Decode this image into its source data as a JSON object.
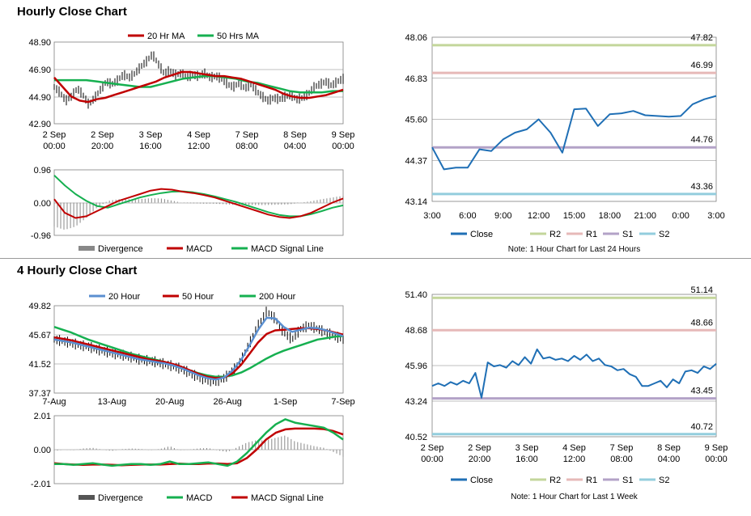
{
  "sections": {
    "hourly_title": "Hourly Close Chart",
    "four_hourly_title": "4 Hourly Close Chart"
  },
  "colors": {
    "ma_red": "#c00000",
    "ma_green": "#16b050",
    "ma_blue": "#5b8fd0",
    "close_blue": "#1f6fb5",
    "r2": "#c3d69b",
    "r1": "#e6b9b8",
    "s1": "#b3a2c7",
    "s2": "#93cddd",
    "divergence": "#888888"
  },
  "chart_data": [
    {
      "id": "hourly_price",
      "type": "line",
      "legend": [
        "20 Hr MA",
        "50 Hrs MA"
      ],
      "y_ticks": [
        "48.90",
        "46.90",
        "44.90",
        "42.90"
      ],
      "ylim": [
        42.9,
        48.9
      ],
      "x_ticks": [
        [
          "2 Sep",
          "00:00"
        ],
        [
          "2 Sep",
          "20:00"
        ],
        [
          "3 Sep",
          "16:00"
        ],
        [
          "4 Sep",
          "12:00"
        ],
        [
          "7 Sep",
          "08:00"
        ],
        [
          "8 Sep",
          "04:00"
        ],
        [
          "9 Sep",
          "00:00"
        ]
      ],
      "price": [
        45.6,
        45.2,
        44.6,
        44.9,
        45.5,
        45.0,
        44.3,
        44.8,
        45.4,
        46.0,
        45.8,
        46.1,
        46.5,
        46.3,
        46.6,
        47.1,
        47.5,
        48.0,
        47.3,
        46.6,
        46.8,
        46.5,
        46.6,
        46.3,
        46.5,
        46.4,
        46.6,
        46.3,
        46.4,
        46.2,
        45.8,
        45.6,
        45.9,
        45.5,
        45.8,
        45.3,
        44.9,
        44.6,
        44.8,
        44.7,
        44.9,
        45.0,
        44.7,
        44.8,
        45.1,
        45.6,
        45.8,
        46.0,
        45.7,
        46.0,
        46.2
      ],
      "ma20": [
        46.3,
        45.6,
        44.9,
        44.6,
        44.5,
        44.7,
        44.8,
        45.0,
        45.2,
        45.4,
        45.6,
        45.8,
        46.0,
        46.3,
        46.5,
        46.7,
        46.7,
        46.6,
        46.5,
        46.4,
        46.4,
        46.3,
        46.2,
        46.0,
        45.8,
        45.6,
        45.4,
        45.1,
        44.9,
        44.8,
        44.8,
        44.9,
        45.0,
        45.2,
        45.4
      ],
      "ma50": [
        46.1,
        46.1,
        46.1,
        46.1,
        46.0,
        45.9,
        45.8,
        45.7,
        45.6,
        45.6,
        45.8,
        46.0,
        46.2,
        46.3,
        46.4,
        46.4,
        46.3,
        46.2,
        46.0,
        45.9,
        45.7,
        45.5,
        45.3,
        45.2,
        45.2,
        45.2,
        45.3,
        45.3
      ]
    },
    {
      "id": "hourly_macd",
      "type": "line",
      "legend": [
        "Divergence",
        "MACD",
        "MACD Signal Line"
      ],
      "y_ticks": [
        "0.96",
        "0.00",
        "-0.96"
      ],
      "ylim": [
        -0.96,
        0.96
      ],
      "macd": [
        0.1,
        -0.3,
        -0.45,
        -0.4,
        -0.25,
        -0.1,
        0.05,
        0.15,
        0.25,
        0.35,
        0.4,
        0.38,
        0.32,
        0.28,
        0.22,
        0.15,
        0.05,
        -0.05,
        -0.15,
        -0.25,
        -0.35,
        -0.42,
        -0.45,
        -0.4,
        -0.3,
        -0.15,
        0.0,
        0.12
      ],
      "signal": [
        0.8,
        0.5,
        0.25,
        0.05,
        -0.1,
        -0.15,
        -0.05,
        0.05,
        0.15,
        0.22,
        0.28,
        0.32,
        0.33,
        0.3,
        0.25,
        0.18,
        0.1,
        0.02,
        -0.08,
        -0.18,
        -0.28,
        -0.36,
        -0.4,
        -0.4,
        -0.34,
        -0.25,
        -0.15,
        -0.08
      ]
    },
    {
      "id": "hourly_close_24h",
      "type": "line",
      "legend": [
        "Close",
        "R2",
        "R1",
        "S1",
        "S2"
      ],
      "y_ticks": [
        "48.06",
        "46.83",
        "45.60",
        "44.37",
        "43.14"
      ],
      "ylim": [
        43.14,
        48.06
      ],
      "x_ticks": [
        "3:00",
        "6:00",
        "9:00",
        "12:00",
        "15:00",
        "18:00",
        "21:00",
        "0:00",
        "3:00"
      ],
      "values": [
        44.76,
        44.1,
        44.15,
        44.15,
        44.7,
        44.65,
        45.0,
        45.2,
        45.3,
        45.6,
        45.2,
        44.6,
        45.9,
        45.92,
        45.4,
        45.75,
        45.78,
        45.85,
        45.72,
        45.7,
        45.68,
        45.7,
        46.05,
        46.2,
        46.3
      ],
      "levels": {
        "R2": 47.82,
        "R1": 46.99,
        "S1": 44.76,
        "S2": 43.36
      },
      "level_labels": [
        "47.82",
        "46.99",
        "44.76",
        "43.36"
      ],
      "note": "Note: 1 Hour Chart for Last 24 Hours"
    },
    {
      "id": "four_hourly_price",
      "type": "line",
      "legend": [
        "20 Hour",
        "50 Hour",
        "200 Hour"
      ],
      "y_ticks": [
        "49.82",
        "45.67",
        "41.52",
        "37.37"
      ],
      "ylim": [
        37.37,
        49.82
      ],
      "x_ticks": [
        "7-Aug",
        "13-Aug",
        "20-Aug",
        "26-Aug",
        "1-Sep",
        "7-Sep"
      ],
      "price": [
        45.0,
        44.8,
        44.5,
        44.2,
        44.0,
        43.6,
        43.3,
        43.0,
        42.8,
        42.5,
        42.2,
        42.0,
        41.8,
        41.5,
        41.2,
        40.8,
        40.2,
        39.6,
        39.2,
        39.0,
        39.5,
        40.5,
        42.0,
        44.5,
        47.0,
        49.0,
        48.0,
        46.0,
        45.0,
        46.5,
        47.0,
        46.5,
        46.0,
        45.5,
        45.0
      ],
      "ma20": [
        45.0,
        44.8,
        44.6,
        44.3,
        44.0,
        43.7,
        43.4,
        43.1,
        42.8,
        42.5,
        42.2,
        42.0,
        41.8,
        41.6,
        41.3,
        40.9,
        40.4,
        39.9,
        39.5,
        39.3,
        39.6,
        40.6,
        42.1,
        44.2,
        46.4,
        48.1,
        48.0,
        46.8,
        46.1,
        46.4,
        46.7,
        46.6,
        46.3,
        45.9,
        45.5
      ],
      "ma50": [
        45.3,
        45.1,
        44.9,
        44.6,
        44.3,
        44.0,
        43.7,
        43.4,
        43.1,
        42.8,
        42.5,
        42.2,
        42.0,
        41.8,
        41.5,
        41.1,
        40.6,
        40.1,
        39.7,
        39.5,
        39.6,
        40.2,
        41.4,
        43.0,
        44.6,
        45.8,
        46.3,
        46.4,
        46.5,
        46.6,
        46.6,
        46.5,
        46.3,
        46.0,
        45.7
      ],
      "ma200": [
        46.8,
        46.4,
        46.0,
        45.5,
        45.0,
        44.6,
        44.2,
        43.8,
        43.4,
        43.0,
        42.7,
        42.4,
        42.1,
        41.8,
        41.4,
        41.0,
        40.6,
        40.2,
        39.9,
        39.7,
        39.7,
        39.9,
        40.3,
        40.9,
        41.6,
        42.3,
        42.9,
        43.4,
        43.8,
        44.2,
        44.6,
        45.0,
        45.2,
        45.4,
        45.5
      ]
    },
    {
      "id": "four_hourly_macd",
      "type": "line",
      "legend": [
        "Divergence",
        "MACD",
        "MACD Signal Line"
      ],
      "y_ticks": [
        "2.01",
        "0.00",
        "-2.01"
      ],
      "ylim": [
        -2.01,
        2.01
      ],
      "macd": [
        -0.85,
        -0.85,
        -0.9,
        -0.85,
        -0.8,
        -0.88,
        -0.95,
        -0.9,
        -0.85,
        -0.85,
        -0.9,
        -0.85,
        -0.7,
        -0.85,
        -0.85,
        -0.8,
        -0.75,
        -0.85,
        -0.95,
        -0.7,
        -0.2,
        0.4,
        1.0,
        1.5,
        1.8,
        1.6,
        1.5,
        1.4,
        1.3,
        1.0,
        0.6
      ],
      "signal": [
        -0.8,
        -0.85,
        -0.88,
        -0.9,
        -0.88,
        -0.88,
        -0.9,
        -0.92,
        -0.9,
        -0.88,
        -0.88,
        -0.88,
        -0.85,
        -0.83,
        -0.85,
        -0.85,
        -0.82,
        -0.82,
        -0.85,
        -0.8,
        -0.5,
        0.0,
        0.6,
        1.0,
        1.2,
        1.25,
        1.25,
        1.25,
        1.22,
        1.1,
        0.9
      ]
    },
    {
      "id": "four_hourly_close_week",
      "type": "line",
      "legend": [
        "Close",
        "R2",
        "R1",
        "S1",
        "S2"
      ],
      "y_ticks": [
        "51.40",
        "48.68",
        "45.96",
        "43.24",
        "40.52"
      ],
      "ylim": [
        40.52,
        51.4
      ],
      "x_ticks": [
        [
          "2 Sep",
          "00:00"
        ],
        [
          "2 Sep",
          "20:00"
        ],
        [
          "3 Sep",
          "16:00"
        ],
        [
          "4 Sep",
          "12:00"
        ],
        [
          "7 Sep",
          "08:00"
        ],
        [
          "8 Sep",
          "04:00"
        ],
        [
          "9 Sep",
          "00:00"
        ]
      ],
      "values": [
        44.4,
        44.6,
        44.4,
        44.7,
        44.5,
        44.8,
        44.6,
        45.4,
        43.5,
        46.2,
        45.9,
        46.0,
        45.8,
        46.3,
        46.0,
        46.6,
        46.1,
        47.2,
        46.5,
        46.6,
        46.4,
        46.5,
        46.3,
        46.7,
        46.4,
        46.8,
        46.3,
        46.5,
        46.0,
        45.9,
        45.6,
        45.7,
        45.3,
        45.1,
        44.4,
        44.4,
        44.6,
        44.8,
        44.3,
        44.9,
        44.6,
        45.5,
        45.6,
        45.4,
        45.9,
        45.7,
        46.1
      ],
      "levels": {
        "R2": 51.14,
        "R1": 48.66,
        "S1": 43.45,
        "S2": 40.72
      },
      "level_labels": [
        "51.14",
        "48.66",
        "43.45",
        "40.72"
      ],
      "note": "Note: 1 Hour Chart for Last 1 Week"
    }
  ]
}
